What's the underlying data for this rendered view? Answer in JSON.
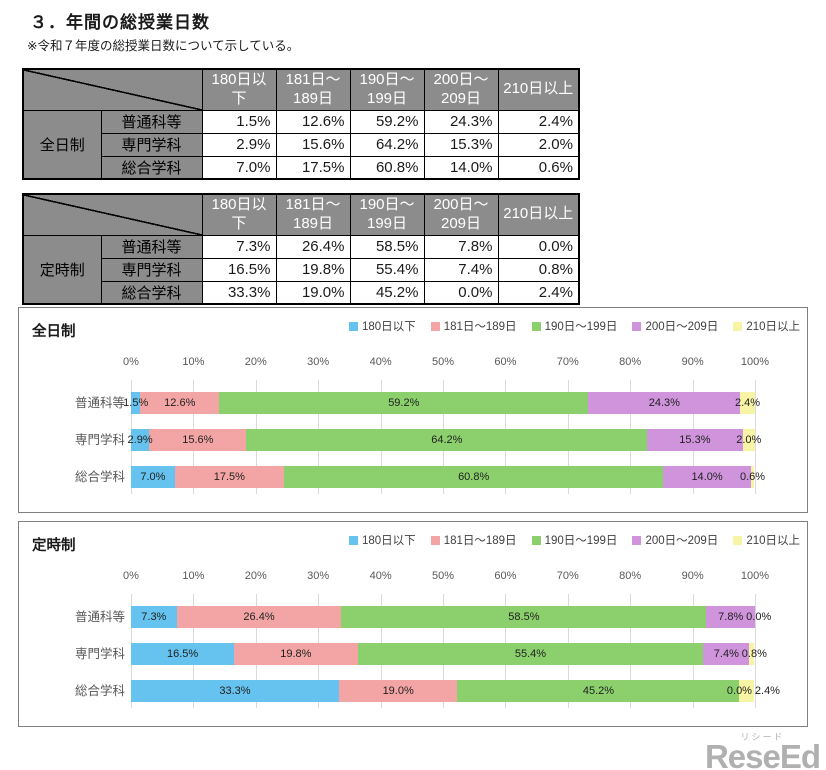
{
  "page": {
    "title": "３．年間の総授業日数",
    "note": "※令和７年度の総授業日数について示している。"
  },
  "colors": {
    "bin_180_under": "#66C2EE",
    "bin_181_189": "#F3A5A5",
    "bin_190_199": "#8CD06E",
    "bin_200_209": "#CF94DB",
    "bin_210_over": "#F8F4A5",
    "table_header_bg": "#8C8C8C",
    "gridline": "#DADADA",
    "axis_text": "#595959",
    "logo_gray": "#B0B0B0"
  },
  "day_bins": [
    "180日以下",
    "181日～189日",
    "190日～199日",
    "200日～209日",
    "210日以上"
  ],
  "tables": [
    {
      "group": "全日制",
      "columns": [
        "180日以下",
        "181日～189日",
        "190日～199日",
        "200日～209日",
        "210日以上"
      ],
      "rows": [
        {
          "label": "普通科等",
          "values": [
            "1.5%",
            "12.6%",
            "59.2%",
            "24.3%",
            "2.4%"
          ]
        },
        {
          "label": "専門学科",
          "values": [
            "2.9%",
            "15.6%",
            "64.2%",
            "15.3%",
            "2.0%"
          ]
        },
        {
          "label": "総合学科",
          "values": [
            "7.0%",
            "17.5%",
            "60.8%",
            "14.0%",
            "0.6%"
          ]
        }
      ]
    },
    {
      "group": "定時制",
      "columns": [
        "180日以下",
        "181日～189日",
        "190日～199日",
        "200日～209日",
        "210日以上"
      ],
      "rows": [
        {
          "label": "普通科等",
          "values": [
            "7.3%",
            "26.4%",
            "58.5%",
            "7.8%",
            "0.0%"
          ]
        },
        {
          "label": "専門学科",
          "values": [
            "16.5%",
            "19.8%",
            "55.4%",
            "7.4%",
            "0.8%"
          ]
        },
        {
          "label": "総合学科",
          "values": [
            "33.3%",
            "19.0%",
            "45.2%",
            "0.0%",
            "2.4%"
          ]
        }
      ]
    }
  ],
  "chart_data": [
    {
      "type": "bar",
      "stacked": true,
      "orientation": "horizontal",
      "title": "全日制",
      "categories": [
        "普通科等",
        "専門学科",
        "総合学科"
      ],
      "series": [
        {
          "name": "180日以下",
          "color": "#66C2EE",
          "values": [
            1.5,
            2.9,
            7.0
          ]
        },
        {
          "name": "181日～189日",
          "color": "#F3A5A5",
          "values": [
            12.6,
            15.6,
            17.5
          ]
        },
        {
          "name": "190日～199日",
          "color": "#8CD06E",
          "values": [
            59.2,
            64.2,
            60.8
          ]
        },
        {
          "name": "200日～209日",
          "color": "#CF94DB",
          "values": [
            24.3,
            15.3,
            14.0
          ]
        },
        {
          "name": "210日以上",
          "color": "#F8F4A5",
          "values": [
            2.4,
            2.0,
            0.6
          ]
        }
      ],
      "xlim": [
        0,
        100
      ],
      "ticks": [
        "0%",
        "10%",
        "20%",
        "30%",
        "40%",
        "50%",
        "60%",
        "70%",
        "80%",
        "90%",
        "100%"
      ],
      "grid": true,
      "legend_position": "top-right",
      "data_labels": true
    },
    {
      "type": "bar",
      "stacked": true,
      "orientation": "horizontal",
      "title": "定時制",
      "categories": [
        "普通科等",
        "専門学科",
        "総合学科"
      ],
      "series": [
        {
          "name": "180日以下",
          "color": "#66C2EE",
          "values": [
            7.3,
            16.5,
            33.3
          ]
        },
        {
          "name": "181日～189日",
          "color": "#F3A5A5",
          "values": [
            26.4,
            19.8,
            19.0
          ]
        },
        {
          "name": "190日～199日",
          "color": "#8CD06E",
          "values": [
            58.5,
            55.4,
            45.2
          ]
        },
        {
          "name": "200日～209日",
          "color": "#CF94DB",
          "values": [
            7.8,
            7.4,
            0.0
          ]
        },
        {
          "name": "210日以上",
          "color": "#F8F4A5",
          "values": [
            0.0,
            0.8,
            2.4
          ]
        }
      ],
      "xlim": [
        0,
        100
      ],
      "ticks": [
        "0%",
        "10%",
        "20%",
        "30%",
        "40%",
        "50%",
        "60%",
        "70%",
        "80%",
        "90%",
        "100%"
      ],
      "grid": true,
      "legend_position": "top-right",
      "data_labels": true
    }
  ],
  "logo": {
    "text": "ReseEd",
    "ruby": "リシード"
  }
}
